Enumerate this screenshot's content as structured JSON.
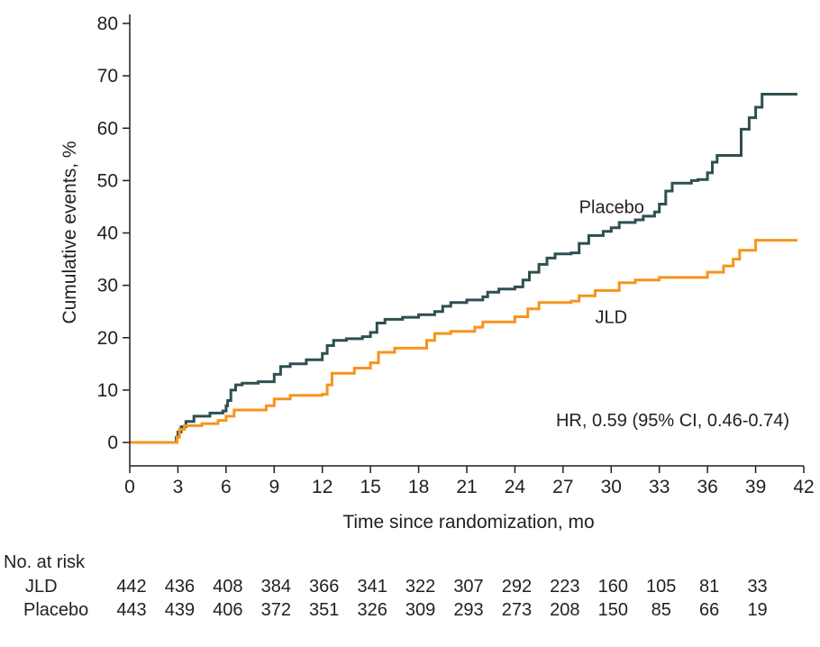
{
  "chart_data": {
    "type": "line",
    "title": "",
    "xlabel": "Time since randomization, mo",
    "ylabel": "Cumulative events, %",
    "xlim": [
      0,
      42
    ],
    "ylim": [
      0,
      80
    ],
    "x_ticks": [
      "0",
      "3",
      "6",
      "9",
      "12",
      "15",
      "18",
      "21",
      "24",
      "27",
      "30",
      "33",
      "36",
      "39",
      "42"
    ],
    "y_ticks": [
      "0",
      "10",
      "20",
      "30",
      "40",
      "50",
      "60",
      "70",
      "80"
    ],
    "grid": false,
    "annotation": "HR, 0.59 (95% CI, 0.46-0.74)",
    "series": [
      {
        "name": "Placebo",
        "color": "#2f4f50",
        "points": [
          [
            0,
            0
          ],
          [
            2.7,
            0
          ],
          [
            2.9,
            1
          ],
          [
            3.0,
            2
          ],
          [
            3.2,
            3
          ],
          [
            3.5,
            4
          ],
          [
            4.0,
            5
          ],
          [
            5.0,
            5.6
          ],
          [
            5.8,
            6
          ],
          [
            6.0,
            7
          ],
          [
            6.1,
            8
          ],
          [
            6.3,
            10
          ],
          [
            6.6,
            11
          ],
          [
            7.0,
            11.3
          ],
          [
            8.0,
            11.6
          ],
          [
            9.0,
            13
          ],
          [
            9.4,
            14.5
          ],
          [
            10.0,
            15
          ],
          [
            11.0,
            15.8
          ],
          [
            12.0,
            17
          ],
          [
            12.3,
            18.5
          ],
          [
            12.7,
            19.5
          ],
          [
            13.5,
            19.8
          ],
          [
            14.5,
            20.2
          ],
          [
            15.0,
            21
          ],
          [
            15.4,
            22.8
          ],
          [
            15.9,
            23.5
          ],
          [
            17.0,
            23.9
          ],
          [
            18.0,
            24.4
          ],
          [
            19.0,
            25
          ],
          [
            19.5,
            26
          ],
          [
            20.0,
            26.7
          ],
          [
            21.0,
            27.2
          ],
          [
            22.0,
            27.8
          ],
          [
            22.3,
            28.7
          ],
          [
            23.0,
            29.3
          ],
          [
            24.0,
            29.7
          ],
          [
            24.5,
            31
          ],
          [
            24.9,
            32.5
          ],
          [
            25.5,
            34
          ],
          [
            26.0,
            35.2
          ],
          [
            26.5,
            36
          ],
          [
            27.5,
            36.2
          ],
          [
            28.0,
            38
          ],
          [
            28.6,
            39.5
          ],
          [
            29.5,
            40.3
          ],
          [
            30.0,
            41
          ],
          [
            30.5,
            42
          ],
          [
            31.5,
            42.5
          ],
          [
            32.0,
            43.2
          ],
          [
            32.7,
            44
          ],
          [
            33.0,
            45.5
          ],
          [
            33.4,
            48
          ],
          [
            33.8,
            49.5
          ],
          [
            35.0,
            50
          ],
          [
            35.4,
            50.2
          ],
          [
            36.0,
            51.5
          ],
          [
            36.3,
            53.5
          ],
          [
            36.6,
            54.8
          ],
          [
            38.0,
            54.8
          ],
          [
            38.1,
            59.8
          ],
          [
            38.6,
            62
          ],
          [
            39.0,
            64
          ],
          [
            39.4,
            66.5
          ],
          [
            41.6,
            66.5
          ]
        ]
      },
      {
        "name": "JLD",
        "color": "#f7941d",
        "points": [
          [
            0,
            0
          ],
          [
            2.8,
            0
          ],
          [
            2.95,
            1
          ],
          [
            3.1,
            2.5
          ],
          [
            3.4,
            3.2
          ],
          [
            4.5,
            3.6
          ],
          [
            5.5,
            4.2
          ],
          [
            6.0,
            5
          ],
          [
            6.5,
            6.2
          ],
          [
            8.5,
            7
          ],
          [
            9.0,
            8.3
          ],
          [
            10.0,
            9
          ],
          [
            12.0,
            9.2
          ],
          [
            12.3,
            11
          ],
          [
            12.6,
            13.2
          ],
          [
            14.0,
            14.2
          ],
          [
            15.0,
            15.2
          ],
          [
            15.5,
            17.2
          ],
          [
            16.5,
            18
          ],
          [
            18.5,
            19.5
          ],
          [
            19.0,
            20.8
          ],
          [
            20.0,
            21.2
          ],
          [
            21.5,
            22
          ],
          [
            22.0,
            23
          ],
          [
            24.0,
            24
          ],
          [
            24.8,
            25.5
          ],
          [
            25.5,
            26.7
          ],
          [
            27.5,
            27
          ],
          [
            28.0,
            28
          ],
          [
            29.0,
            29
          ],
          [
            30.5,
            30.5
          ],
          [
            31.5,
            31
          ],
          [
            33.0,
            31.5
          ],
          [
            36.0,
            32.5
          ],
          [
            37.0,
            33.7
          ],
          [
            37.6,
            35
          ],
          [
            38.0,
            36.7
          ],
          [
            39.0,
            38.6
          ],
          [
            41.6,
            38.6
          ]
        ]
      }
    ],
    "series_labels": [
      {
        "name": "Placebo",
        "x": 28.0,
        "y": 45
      },
      {
        "name": "JLD",
        "x": 29.0,
        "y": 24
      }
    ],
    "risk_table": {
      "title": "No. at risk",
      "times": [
        0,
        3,
        6,
        9,
        12,
        15,
        18,
        21,
        24,
        27,
        30,
        33,
        36,
        39
      ],
      "rows": [
        {
          "label": "JLD",
          "values": [
            "442",
            "436",
            "408",
            "384",
            "366",
            "341",
            "322",
            "307",
            "292",
            "223",
            "160",
            "105",
            "81",
            "33"
          ]
        },
        {
          "label": "Placebo",
          "values": [
            "443",
            "439",
            "406",
            "372",
            "351",
            "326",
            "309",
            "293",
            "273",
            "208",
            "150",
            "85",
            "66",
            "19"
          ]
        }
      ]
    }
  }
}
